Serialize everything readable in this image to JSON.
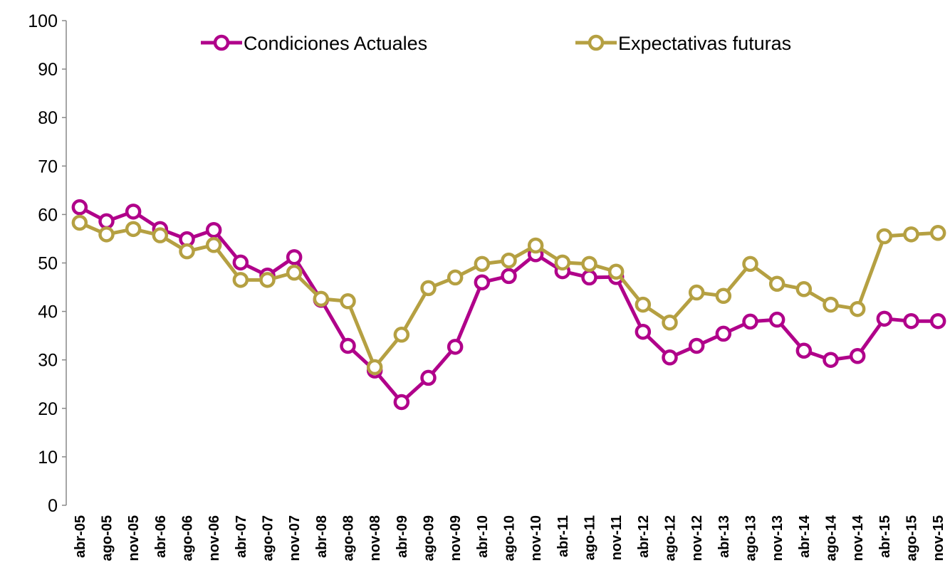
{
  "chart_data": {
    "type": "line",
    "categories": [
      "abr-05",
      "ago-05",
      "nov-05",
      "abr-06",
      "ago-06",
      "nov-06",
      "abr-07",
      "ago-07",
      "nov-07",
      "abr-08",
      "ago-08",
      "nov-08",
      "abr-09",
      "ago-09",
      "nov-09",
      "abr-10",
      "ago-10",
      "nov-10",
      "abr-11",
      "ago-11",
      "nov-11",
      "abr-12",
      "ago-12",
      "nov-12",
      "abr-13",
      "ago-13",
      "nov-13",
      "abr-14",
      "ago-14",
      "nov-14",
      "abr-15",
      "ago-15",
      "nov-15"
    ],
    "series": [
      {
        "name": "Condiciones Actuales",
        "color": "#b0008a",
        "values": [
          61.5,
          58.6,
          60.6,
          57.0,
          54.9,
          56.8,
          50.1,
          47.4,
          51.2,
          42.4,
          32.9,
          27.8,
          21.3,
          26.3,
          32.7,
          46.0,
          47.3,
          51.8,
          48.3,
          47.0,
          47.1,
          35.8,
          30.5,
          32.9,
          35.4,
          37.9,
          38.3,
          31.9,
          30.0,
          30.8,
          38.5,
          38.0,
          38.0
        ]
      },
      {
        "name": "Expectativas futuras",
        "color": "#b5a042",
        "values": [
          58.3,
          55.9,
          57.0,
          55.7,
          52.4,
          53.7,
          46.5,
          46.5,
          48.0,
          42.6,
          42.1,
          28.5,
          35.2,
          44.8,
          47.0,
          49.8,
          50.5,
          53.6,
          50.1,
          49.8,
          48.2,
          41.4,
          37.7,
          43.9,
          43.2,
          49.8,
          45.7,
          44.6,
          41.4,
          40.5,
          55.5,
          55.9,
          56.2
        ]
      }
    ],
    "ylim": [
      0,
      100
    ],
    "yticks": [
      0,
      10,
      20,
      30,
      40,
      50,
      60,
      70,
      80,
      90,
      100
    ],
    "grid": false
  }
}
